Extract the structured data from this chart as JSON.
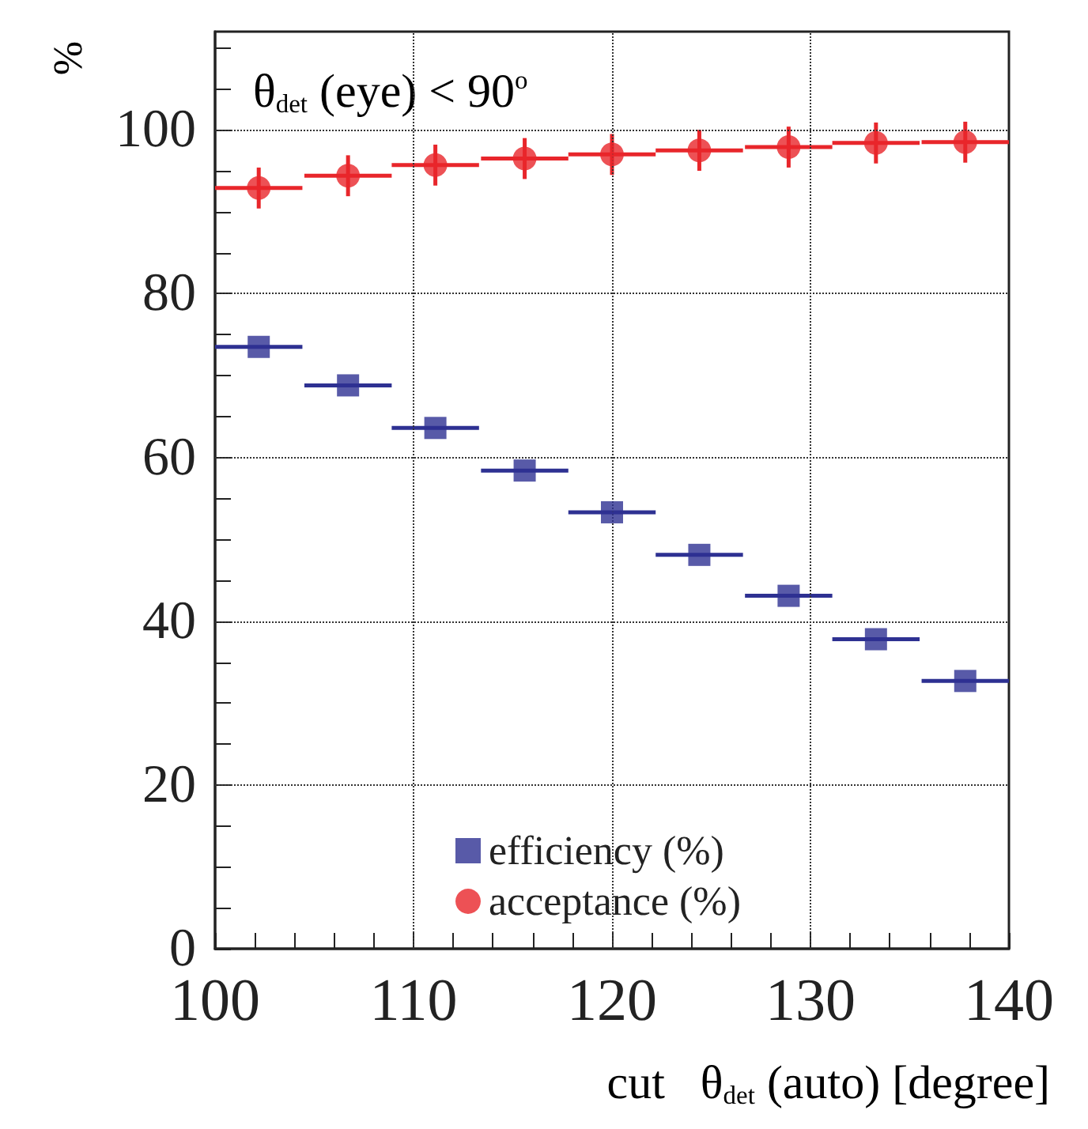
{
  "chart_data": {
    "type": "scatter",
    "xlabel": "cut   θ$_{det}$ (auto) [degree]",
    "ylabel": "%",
    "annotations": [
      "θ$_{det}$ (eye) < 90$^{o}$"
    ],
    "x": [
      102.2,
      106.7,
      111.1,
      115.6,
      120,
      124.4,
      128.9,
      133.3,
      137.8
    ],
    "series": [
      {
        "name": "efficiency (%)",
        "color": "#2e3192",
        "marker": "square",
        "values": [
          73.5,
          68.8,
          63.6,
          58.4,
          53.3,
          48.1,
          43.1,
          37.8,
          32.7
        ],
        "xerrors": [
          2.2,
          2.2,
          2.2,
          2.2,
          2.2,
          2.2,
          2.2,
          2.2,
          2.2
        ]
      },
      {
        "name": "acceptance (%)",
        "color": "#e8262b",
        "marker": "circle",
        "values": [
          92.9,
          94.4,
          95.7,
          96.5,
          97.0,
          97.5,
          97.9,
          98.4,
          98.5
        ],
        "xerrors": [
          2.2,
          2.2,
          2.2,
          2.2,
          2.2,
          2.2,
          2.2,
          2.2,
          2.2
        ],
        "errors": [
          2.5,
          2.5,
          2.5,
          2.5,
          2.5,
          2.5,
          2.5,
          2.5,
          2.5
        ]
      }
    ],
    "xlim": [
      100,
      140
    ],
    "xticks": [
      100,
      {
        "value": 102,
        "label": null
      },
      {
        "value": 104,
        "label": null
      },
      {
        "value": 106,
        "label": null
      },
      {
        "value": 108,
        "label": null
      },
      110,
      {
        "value": 112,
        "label": null
      },
      {
        "value": 114,
        "label": null
      },
      {
        "value": 116,
        "label": null
      },
      {
        "value": 118,
        "label": null
      },
      120,
      {
        "value": 122,
        "label": null
      },
      {
        "value": 124,
        "label": null
      },
      {
        "value": 126,
        "label": null
      },
      {
        "value": 128,
        "label": null
      },
      130,
      {
        "value": 132,
        "label": null
      },
      {
        "value": 134,
        "label": null
      },
      {
        "value": 136,
        "label": null
      },
      {
        "value": 138,
        "label": null
      },
      140
    ],
    "ylim": [
      0,
      112
    ],
    "yticks": [
      0,
      {
        "value": 5,
        "label": null
      },
      {
        "value": 10,
        "label": null
      },
      {
        "value": 15,
        "label": null
      },
      20,
      {
        "value": 25,
        "label": null
      },
      {
        "value": 30,
        "label": null
      },
      {
        "value": 35,
        "label": null
      },
      40,
      {
        "value": 45,
        "label": null
      },
      {
        "value": 50,
        "label": null
      },
      {
        "value": 55,
        "label": null
      },
      60,
      {
        "value": 65,
        "label": null
      },
      {
        "value": 70,
        "label": null
      },
      {
        "value": 75,
        "label": null
      },
      80,
      {
        "value": 85,
        "label": null
      },
      {
        "value": 90,
        "label": null
      },
      {
        "value": 95,
        "label": null
      },
      100,
      {
        "value": 105,
        "label": null
      },
      {
        "value": 110,
        "label": null
      }
    ],
    "grid": true,
    "legend": "bottom"
  }
}
